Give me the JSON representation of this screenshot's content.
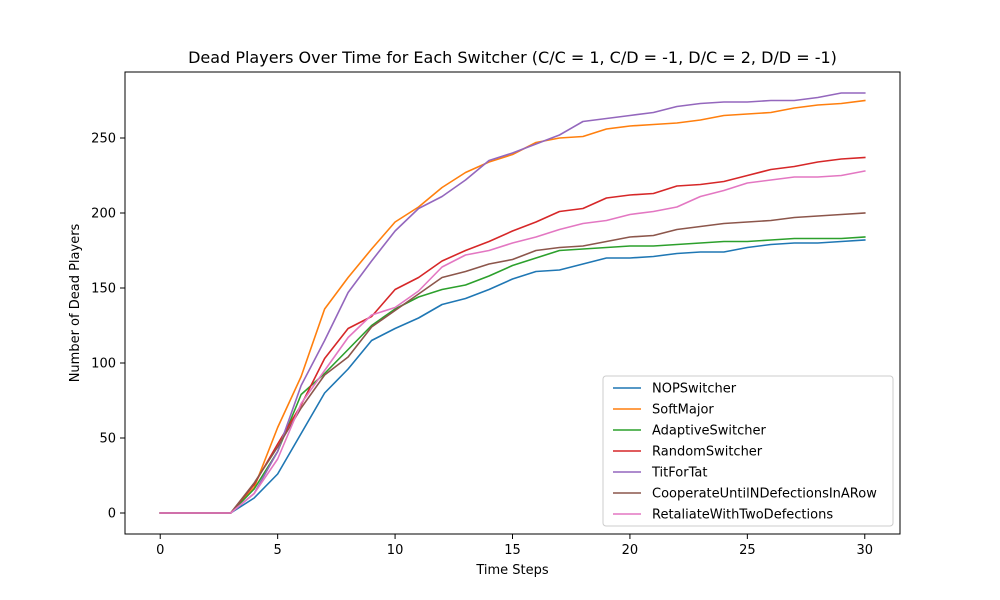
{
  "chart_data": {
    "type": "line",
    "title": "Dead Players Over Time for Each Switcher (C/C = 1, C/D = -1, D/C = 2, D/D = -1)",
    "xlabel": "Time Steps",
    "ylabel": "Number of Dead Players",
    "xlim": [
      -1.5,
      31.5
    ],
    "ylim": [
      -14,
      294
    ],
    "xticks": [
      0,
      5,
      10,
      15,
      20,
      25,
      30
    ],
    "yticks": [
      0,
      50,
      100,
      150,
      200,
      250
    ],
    "grid": false,
    "legend_position": "lower-right",
    "x": [
      0,
      1,
      2,
      3,
      4,
      5,
      6,
      7,
      8,
      9,
      10,
      11,
      12,
      13,
      14,
      15,
      16,
      17,
      18,
      19,
      20,
      21,
      22,
      23,
      24,
      25,
      26,
      27,
      28,
      29,
      30
    ],
    "series": [
      {
        "name": "NOPSwitcher",
        "color": "#1f77b4",
        "values": [
          0,
          0,
          0,
          0,
          10,
          26,
          53,
          80,
          96,
          115,
          123,
          130,
          139,
          143,
          149,
          156,
          161,
          162,
          166,
          170,
          170,
          171,
          173,
          174,
          174,
          177,
          179,
          180,
          180,
          181,
          182
        ]
      },
      {
        "name": "SoftMajor",
        "color": "#ff7f0e",
        "values": [
          0,
          0,
          0,
          0,
          17,
          57,
          91,
          136,
          157,
          176,
          194,
          204,
          217,
          227,
          234,
          239,
          247,
          250,
          251,
          256,
          258,
          259,
          260,
          262,
          265,
          266,
          267,
          270,
          272,
          273,
          275
        ]
      },
      {
        "name": "AdaptiveSwitcher",
        "color": "#2ca02c",
        "values": [
          0,
          0,
          0,
          0,
          16,
          41,
          79,
          93,
          109,
          125,
          136,
          144,
          149,
          152,
          158,
          165,
          170,
          175,
          176,
          177,
          178,
          178,
          179,
          180,
          181,
          181,
          182,
          183,
          183,
          183,
          184
        ]
      },
      {
        "name": "RandomSwitcher",
        "color": "#d62728",
        "values": [
          0,
          0,
          0,
          0,
          19,
          46,
          72,
          103,
          123,
          131,
          149,
          157,
          168,
          175,
          181,
          188,
          194,
          201,
          203,
          210,
          212,
          213,
          218,
          219,
          221,
          225,
          229,
          231,
          234,
          236,
          237
        ]
      },
      {
        "name": "TitForTat",
        "color": "#9467bd",
        "values": [
          0,
          0,
          0,
          0,
          13,
          41,
          85,
          115,
          147,
          168,
          188,
          203,
          211,
          222,
          235,
          240,
          246,
          252,
          261,
          263,
          265,
          267,
          271,
          273,
          274,
          274,
          275,
          275,
          277,
          280,
          280
        ]
      },
      {
        "name": "CooperateUntilNDefectionsInARow",
        "color": "#8c564b",
        "values": [
          0,
          0,
          0,
          0,
          20,
          44,
          70,
          92,
          104,
          124,
          135,
          146,
          157,
          161,
          166,
          169,
          175,
          177,
          178,
          181,
          184,
          185,
          189,
          191,
          193,
          194,
          195,
          197,
          198,
          199,
          200
        ]
      },
      {
        "name": "RetaliateWithTwoDefections",
        "color": "#e377c2",
        "values": [
          0,
          0,
          0,
          0,
          13,
          36,
          73,
          95,
          117,
          132,
          137,
          148,
          164,
          172,
          175,
          180,
          184,
          189,
          193,
          195,
          199,
          201,
          204,
          211,
          215,
          220,
          222,
          224,
          224,
          225,
          228
        ]
      }
    ]
  }
}
